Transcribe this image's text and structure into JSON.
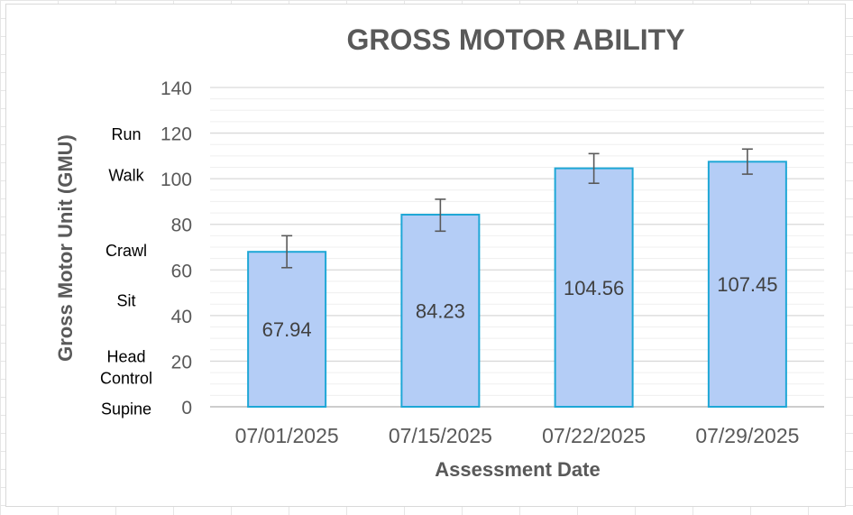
{
  "chart_data": {
    "type": "bar",
    "title": "GROSS MOTOR ABILITY",
    "xlabel": "Assessment Date",
    "ylabel": "Gross Motor Unit (GMU)",
    "categories": [
      "07/01/2025",
      "07/15/2025",
      "07/22/2025",
      "07/29/2025"
    ],
    "values": [
      67.94,
      84.23,
      104.56,
      107.45
    ],
    "error_bars": [
      [
        61,
        75
      ],
      [
        77,
        91
      ],
      [
        98,
        111
      ],
      [
        102,
        113
      ]
    ],
    "data_labels": [
      "67.94",
      "84.23",
      "104.56",
      "107.45"
    ],
    "ylim": [
      0,
      140
    ],
    "yticks": [
      0,
      20,
      40,
      60,
      80,
      100,
      120,
      140
    ],
    "grid": true,
    "legend": "none",
    "motor_levels": [
      {
        "label": "Supine",
        "value": -1
      },
      {
        "label": "Head",
        "value": 22
      },
      {
        "label": "Control",
        "value": 12.5
      },
      {
        "label": "Sit",
        "value": 46.5
      },
      {
        "label": "Crawl",
        "value": 68.5
      },
      {
        "label": "Walk",
        "value": 101.5
      },
      {
        "label": "Run",
        "value": 119.5
      }
    ],
    "colors": {
      "bar_fill": "#b4cdf6",
      "bar_stroke": "#1ea7d6",
      "grid": "#d9d9d9",
      "error_bar": "#595959"
    }
  }
}
